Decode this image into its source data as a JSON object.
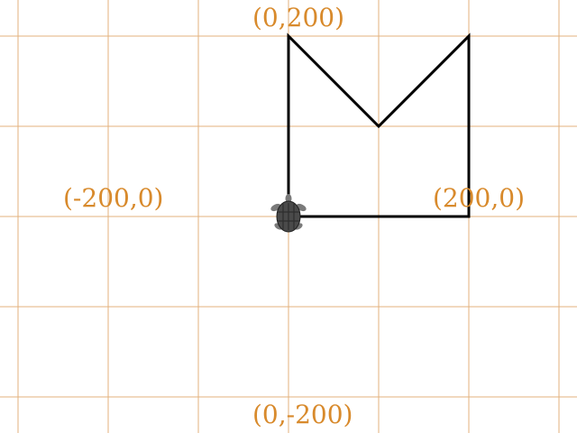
{
  "colors": {
    "grid": "#e3b27c",
    "label": "#d88a2c",
    "path": "#000000",
    "turtle_body": "#4a4a4a",
    "turtle_pattern": "#2e2e2e",
    "turtle_limb": "#7a7a7a"
  },
  "labels": {
    "top": "(0,200)",
    "left": "(-200,0)",
    "right": "(200,0)",
    "bottom": "(0,-200)"
  },
  "grid": {
    "spacing_units": 100,
    "x_range": [
      -300,
      300
    ],
    "y_range": [
      -200,
      200
    ]
  },
  "path_points": [
    {
      "x": 0,
      "y": 0
    },
    {
      "x": 0,
      "y": 200
    },
    {
      "x": 100,
      "y": 100
    },
    {
      "x": 200,
      "y": 200
    },
    {
      "x": 200,
      "y": 0
    },
    {
      "x": 0,
      "y": 0
    }
  ],
  "turtle": {
    "x": 0,
    "y": 0,
    "heading_deg": 90,
    "icon": "turtle-icon"
  }
}
